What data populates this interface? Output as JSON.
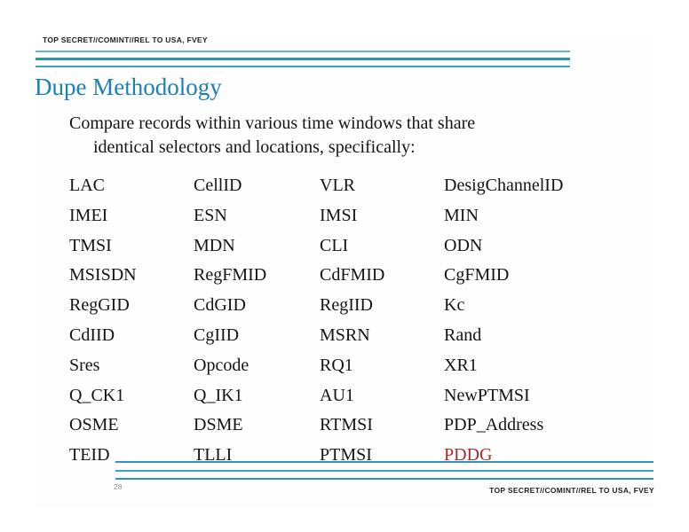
{
  "slide": {
    "classification_top": "TOP SECRET//COMINT//REL TO USA, FVEY",
    "classification_bottom": "TOP SECRET//COMINT//REL TO USA, FVEY",
    "title": "Dupe Methodology",
    "intro_line1": "Compare records within various time windows that share",
    "intro_line2": "identical selectors and locations, specifically:",
    "page_number": "28",
    "colors": {
      "title_blue": "#1b80b2",
      "rule_teal": "#2e96ad",
      "rule_teal_light": "#5bb8cb",
      "highlight_red": "#a62b2a",
      "body_text": "#141414"
    },
    "selector_grid": {
      "rows": [
        [
          "LAC",
          "CellID",
          "VLR",
          "DesigChannelID"
        ],
        [
          "IMEI",
          "ESN",
          "IMSI",
          "MIN"
        ],
        [
          "TMSI",
          "MDN",
          "CLI",
          "ODN"
        ],
        [
          "MSISDN",
          "RegFMID",
          "CdFMID",
          "CgFMID"
        ],
        [
          "RegGID",
          "CdGID",
          "RegIID",
          "Kc"
        ],
        [
          "CdIID",
          "CgIID",
          "MSRN",
          "Rand"
        ],
        [
          "Sres",
          "Opcode",
          "RQ1",
          "XR1"
        ],
        [
          "Q_CK1",
          "Q_IK1",
          "AU1",
          "NewPTMSI"
        ],
        [
          "OSME",
          "DSME",
          "RTMSI",
          "PDP_Address"
        ],
        [
          "TEID",
          "TLLI",
          "PTMSI",
          "PDDG"
        ]
      ],
      "highlight": {
        "row": 9,
        "col": 3
      }
    }
  }
}
